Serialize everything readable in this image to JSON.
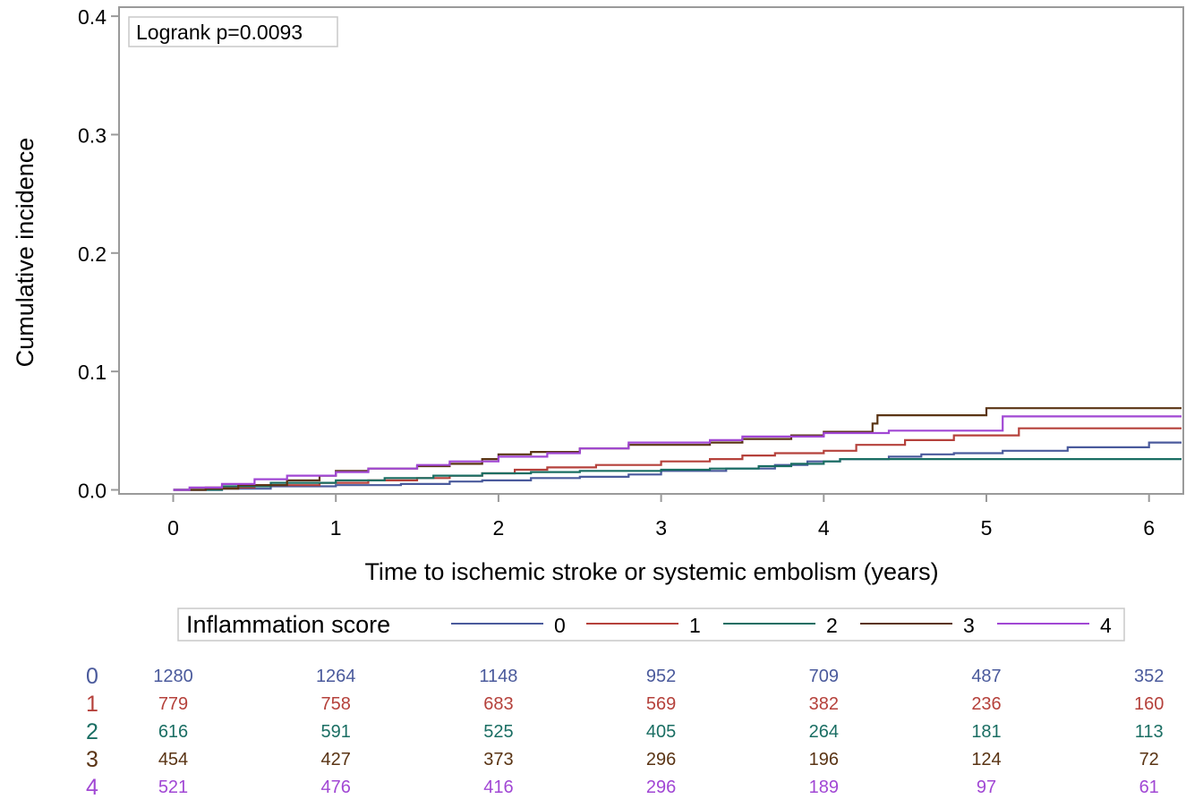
{
  "chart_data": {
    "type": "line",
    "subtype": "kaplan-meier-cumulative-incidence",
    "annotation": "Logrank p=0.0093",
    "xlabel": "Time to ischemic stroke or systemic embolism (years)",
    "ylabel": "Cumulative incidence",
    "xlim": [
      -0.33,
      6.2
    ],
    "ylim": [
      0,
      0.4
    ],
    "x_ticks": [
      "0",
      "1",
      "2",
      "3",
      "4",
      "5",
      "6"
    ],
    "x_tick_values": [
      0,
      1,
      2,
      3,
      4,
      5,
      6
    ],
    "y_ticks": [
      "0.0",
      "0.1",
      "0.2",
      "0.3",
      "0.4"
    ],
    "y_tick_values": [
      0,
      0.1,
      0.2,
      0.3,
      0.4
    ],
    "grid": false,
    "legend": {
      "title": "Inflammation score",
      "placement": "bottom"
    },
    "series": [
      {
        "name": "0",
        "color": "#4a5a9c",
        "steps": [
          [
            0,
            0
          ],
          [
            0.3,
            0.001
          ],
          [
            0.6,
            0.003
          ],
          [
            1.0,
            0.004
          ],
          [
            1.4,
            0.005
          ],
          [
            1.7,
            0.007
          ],
          [
            1.9,
            0.008
          ],
          [
            2.2,
            0.01
          ],
          [
            2.5,
            0.011
          ],
          [
            2.8,
            0.013
          ],
          [
            3.0,
            0.016
          ],
          [
            3.4,
            0.018
          ],
          [
            3.7,
            0.021
          ],
          [
            3.9,
            0.024
          ],
          [
            4.1,
            0.026
          ],
          [
            4.4,
            0.028
          ],
          [
            4.6,
            0.03
          ],
          [
            4.8,
            0.031
          ],
          [
            5.1,
            0.033
          ],
          [
            5.5,
            0.036
          ],
          [
            6.0,
            0.04
          ],
          [
            6.2,
            0.04
          ]
        ]
      },
      {
        "name": "1",
        "color": "#b5413b",
        "steps": [
          [
            0,
            0
          ],
          [
            0.2,
            0.002
          ],
          [
            0.5,
            0.004
          ],
          [
            0.9,
            0.006
          ],
          [
            1.2,
            0.008
          ],
          [
            1.5,
            0.01
          ],
          [
            1.7,
            0.012
          ],
          [
            1.9,
            0.014
          ],
          [
            2.1,
            0.017
          ],
          [
            2.3,
            0.019
          ],
          [
            2.6,
            0.021
          ],
          [
            3.0,
            0.024
          ],
          [
            3.3,
            0.026
          ],
          [
            3.5,
            0.029
          ],
          [
            3.7,
            0.031
          ],
          [
            4.0,
            0.033
          ],
          [
            4.2,
            0.038
          ],
          [
            4.5,
            0.042
          ],
          [
            4.8,
            0.046
          ],
          [
            5.2,
            0.052
          ],
          [
            6.2,
            0.052
          ]
        ]
      },
      {
        "name": "2",
        "color": "#1a6e63",
        "steps": [
          [
            0,
            0
          ],
          [
            0.3,
            0.003
          ],
          [
            0.6,
            0.006
          ],
          [
            1.0,
            0.008
          ],
          [
            1.3,
            0.01
          ],
          [
            1.6,
            0.012
          ],
          [
            1.9,
            0.014
          ],
          [
            2.2,
            0.015
          ],
          [
            2.5,
            0.016
          ],
          [
            3.0,
            0.017
          ],
          [
            3.3,
            0.018
          ],
          [
            3.6,
            0.02
          ],
          [
            3.8,
            0.022
          ],
          [
            4.0,
            0.024
          ],
          [
            4.1,
            0.026
          ],
          [
            6.2,
            0.026
          ]
        ]
      },
      {
        "name": "3",
        "color": "#5a3414",
        "steps": [
          [
            0,
            0
          ],
          [
            0.2,
            0.001
          ],
          [
            0.4,
            0.004
          ],
          [
            0.7,
            0.008
          ],
          [
            0.9,
            0.012
          ],
          [
            1.0,
            0.016
          ],
          [
            1.2,
            0.018
          ],
          [
            1.5,
            0.02
          ],
          [
            1.7,
            0.022
          ],
          [
            1.9,
            0.026
          ],
          [
            2.0,
            0.03
          ],
          [
            2.2,
            0.032
          ],
          [
            2.5,
            0.035
          ],
          [
            2.8,
            0.038
          ],
          [
            3.3,
            0.04
          ],
          [
            3.5,
            0.043
          ],
          [
            3.8,
            0.046
          ],
          [
            4.0,
            0.049
          ],
          [
            4.3,
            0.056
          ],
          [
            4.33,
            0.063
          ],
          [
            4.6,
            0.063
          ],
          [
            5.0,
            0.069
          ],
          [
            6.2,
            0.069
          ]
        ]
      },
      {
        "name": "4",
        "color": "#a147d4",
        "steps": [
          [
            0,
            0
          ],
          [
            0.1,
            0.002
          ],
          [
            0.3,
            0.005
          ],
          [
            0.5,
            0.009
          ],
          [
            0.7,
            0.012
          ],
          [
            1.0,
            0.015
          ],
          [
            1.2,
            0.018
          ],
          [
            1.5,
            0.021
          ],
          [
            1.7,
            0.024
          ],
          [
            2.0,
            0.028
          ],
          [
            2.3,
            0.031
          ],
          [
            2.5,
            0.035
          ],
          [
            2.8,
            0.04
          ],
          [
            3.3,
            0.042
          ],
          [
            3.5,
            0.045
          ],
          [
            4.0,
            0.048
          ],
          [
            4.4,
            0.05
          ],
          [
            5.1,
            0.062
          ],
          [
            6.2,
            0.062
          ]
        ]
      }
    ],
    "risk_table": {
      "times": [
        0,
        1,
        2,
        3,
        4,
        5,
        6
      ],
      "rows": [
        {
          "label": "0",
          "color": "#4a5a9c",
          "values": [
            "1280",
            "1264",
            "1148",
            "952",
            "709",
            "487",
            "352"
          ]
        },
        {
          "label": "1",
          "color": "#b5413b",
          "values": [
            "779",
            "758",
            "683",
            "569",
            "382",
            "236",
            "160"
          ]
        },
        {
          "label": "2",
          "color": "#1a6e63",
          "values": [
            "616",
            "591",
            "525",
            "405",
            "264",
            "181",
            "113"
          ]
        },
        {
          "label": "3",
          "color": "#5a3414",
          "values": [
            "454",
            "427",
            "373",
            "296",
            "196",
            "124",
            "72"
          ]
        },
        {
          "label": "4",
          "color": "#a147d4",
          "values": [
            "521",
            "476",
            "416",
            "296",
            "189",
            "97",
            "61"
          ]
        }
      ]
    }
  }
}
